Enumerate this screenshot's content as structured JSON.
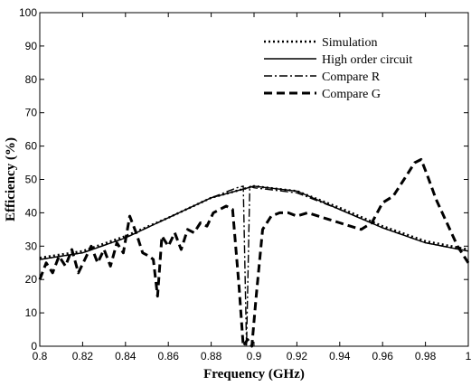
{
  "chart_data": {
    "type": "line",
    "title": "",
    "xlabel": "Frequency (GHz)",
    "ylabel": "Efficiency (%)",
    "xlim": [
      0.8,
      1.0
    ],
    "ylim": [
      0,
      100
    ],
    "xticks": [
      0.8,
      0.82,
      0.84,
      0.86,
      0.88,
      0.9,
      0.92,
      0.94,
      0.96,
      0.98,
      1.0
    ],
    "xtick_labels": [
      "0.8",
      "0.82",
      "0.84",
      "0.86",
      "0.88",
      "0.9",
      "0.92",
      "0.94",
      "0.96",
      "0.98",
      "1"
    ],
    "yticks": [
      0,
      10,
      20,
      30,
      40,
      50,
      60,
      70,
      80,
      90,
      100
    ],
    "ytick_labels": [
      "0",
      "10",
      "20",
      "30",
      "40",
      "50",
      "60",
      "70",
      "80",
      "90",
      "100"
    ],
    "grid": false,
    "legend_position": "top-right",
    "series": [
      {
        "name": "Simulation",
        "style": "dotted",
        "color": "#000000",
        "x": [
          0.8,
          0.82,
          0.84,
          0.86,
          0.88,
          0.9,
          0.92,
          0.94,
          0.96,
          0.98,
          1.0
        ],
        "y": [
          26.5,
          28.5,
          33,
          38.5,
          44.5,
          48,
          46.5,
          41.5,
          36,
          31.5,
          29
        ]
      },
      {
        "name": "High order circuit",
        "style": "solid",
        "color": "#000000",
        "x": [
          0.8,
          0.82,
          0.84,
          0.86,
          0.88,
          0.9,
          0.92,
          0.94,
          0.96,
          0.98,
          1.0
        ],
        "y": [
          26,
          28,
          32.5,
          38.5,
          44.5,
          48,
          46.5,
          41,
          35.5,
          31,
          28.5
        ]
      },
      {
        "name": "Compare R",
        "style": "dash-dot",
        "color": "#000000",
        "x": [
          0.8,
          0.82,
          0.84,
          0.86,
          0.88,
          0.892,
          0.895,
          0.8965,
          0.898,
          0.9,
          0.92,
          0.94,
          0.96,
          0.98,
          1.0
        ],
        "y": [
          26,
          28,
          32.5,
          38.5,
          44.5,
          47.5,
          48,
          0,
          48,
          47.5,
          46,
          41,
          35.5,
          31,
          28.5
        ]
      },
      {
        "name": "Compare G",
        "style": "dashed",
        "color": "#000000",
        "x": [
          0.8,
          0.803,
          0.806,
          0.809,
          0.812,
          0.815,
          0.818,
          0.821,
          0.824,
          0.827,
          0.83,
          0.833,
          0.836,
          0.839,
          0.842,
          0.845,
          0.848,
          0.851,
          0.853,
          0.855,
          0.857,
          0.86,
          0.863,
          0.866,
          0.869,
          0.872,
          0.875,
          0.878,
          0.881,
          0.884,
          0.887,
          0.89,
          0.893,
          0.895,
          0.897,
          0.899,
          0.901,
          0.904,
          0.908,
          0.912,
          0.916,
          0.92,
          0.925,
          0.93,
          0.935,
          0.94,
          0.945,
          0.95,
          0.955,
          0.96,
          0.965,
          0.97,
          0.975,
          0.978,
          0.981,
          0.985,
          0.99,
          0.995,
          1.0
        ],
        "y": [
          20,
          25,
          22,
          27,
          24,
          29,
          22,
          26,
          30,
          25,
          29,
          24,
          31,
          28,
          39,
          34,
          28,
          27,
          26,
          15,
          33,
          30,
          34,
          29,
          35,
          34,
          37,
          36,
          40,
          41,
          42,
          41,
          18,
          0,
          2,
          0,
          15,
          35,
          39,
          40,
          40,
          39,
          40,
          39,
          38,
          37,
          36,
          35,
          37,
          43,
          45,
          50,
          55,
          56,
          51,
          44,
          37,
          30,
          25
        ]
      }
    ]
  }
}
